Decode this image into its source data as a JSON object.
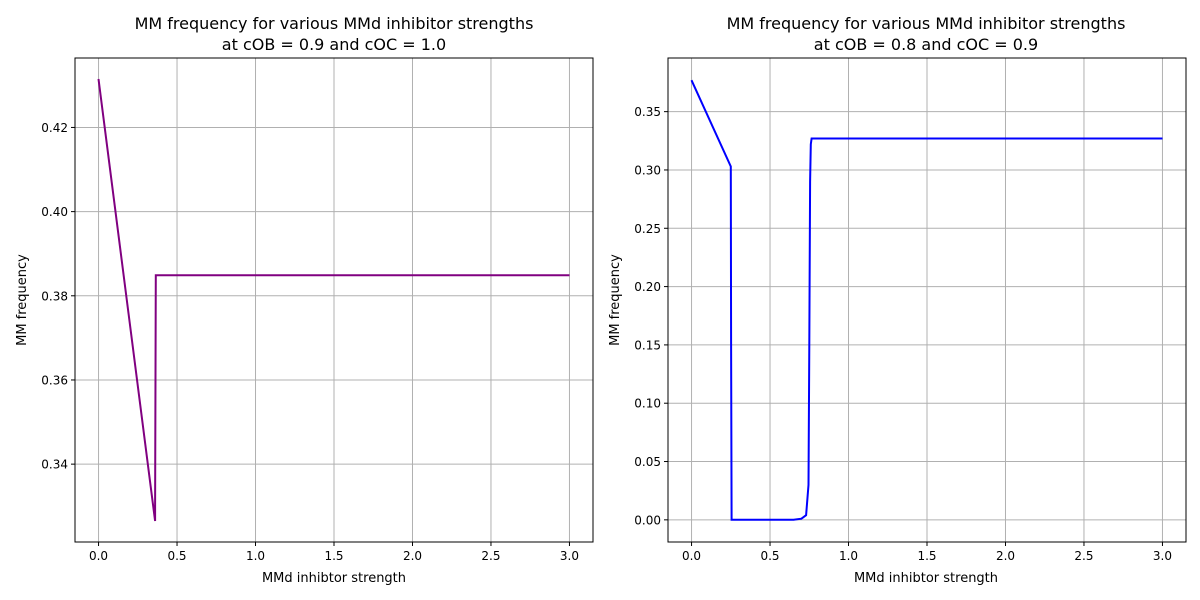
{
  "chart_data": [
    {
      "type": "line",
      "title_line1": "MM frequency for various MMd inhibitor strengths",
      "title_line2": "at cOB = 0.9 and cOC = 1.0",
      "xlabel": "MMd inhibtor strength",
      "ylabel": "MM frequency",
      "xlim": [
        -0.15,
        3.15
      ],
      "ylim": [
        0.3215,
        0.4365
      ],
      "xticks": [
        0.0,
        0.5,
        1.0,
        1.5,
        2.0,
        2.5,
        3.0
      ],
      "xtick_labels": [
        "0.0",
        "0.5",
        "1.0",
        "1.5",
        "2.0",
        "2.5",
        "3.0"
      ],
      "yticks": [
        0.34,
        0.36,
        0.38,
        0.4,
        0.42
      ],
      "ytick_labels": [
        "0.34",
        "0.36",
        "0.38",
        "0.40",
        "0.42"
      ],
      "grid": true,
      "color": "#800080",
      "series": [
        {
          "x": [
            0.0,
            0.36,
            0.36,
            0.365,
            3.0
          ],
          "y": [
            0.4315,
            0.3265,
            0.33,
            0.3849,
            0.3849
          ]
        }
      ]
    },
    {
      "type": "line",
      "title_line1": "MM frequency for various MMd inhibitor strengths",
      "title_line2": "at cOB = 0.8 and cOC = 0.9",
      "xlabel": "MMd inhibtor strength",
      "ylabel": "MM frequency",
      "xlim": [
        -0.15,
        3.15
      ],
      "ylim": [
        -0.019,
        0.396
      ],
      "xticks": [
        0.0,
        0.5,
        1.0,
        1.5,
        2.0,
        2.5,
        3.0
      ],
      "xtick_labels": [
        "0.0",
        "0.5",
        "1.0",
        "1.5",
        "2.0",
        "2.5",
        "3.0"
      ],
      "yticks": [
        0.0,
        0.05,
        0.1,
        0.15,
        0.2,
        0.25,
        0.3,
        0.35
      ],
      "ytick_labels": [
        "0.00",
        "0.05",
        "0.10",
        "0.15",
        "0.20",
        "0.25",
        "0.30",
        "0.35"
      ],
      "grid": true,
      "color": "#0000ff",
      "series": [
        {
          "x": [
            0.0,
            0.25,
            0.252,
            0.255,
            0.65,
            0.7,
            0.73,
            0.745,
            0.75,
            0.755,
            0.76,
            0.765,
            0.78,
            3.0
          ],
          "y": [
            0.377,
            0.303,
            0.15,
            0.0,
            0.0,
            0.001,
            0.004,
            0.03,
            0.15,
            0.29,
            0.322,
            0.327,
            0.327,
            0.327
          ]
        }
      ]
    }
  ]
}
